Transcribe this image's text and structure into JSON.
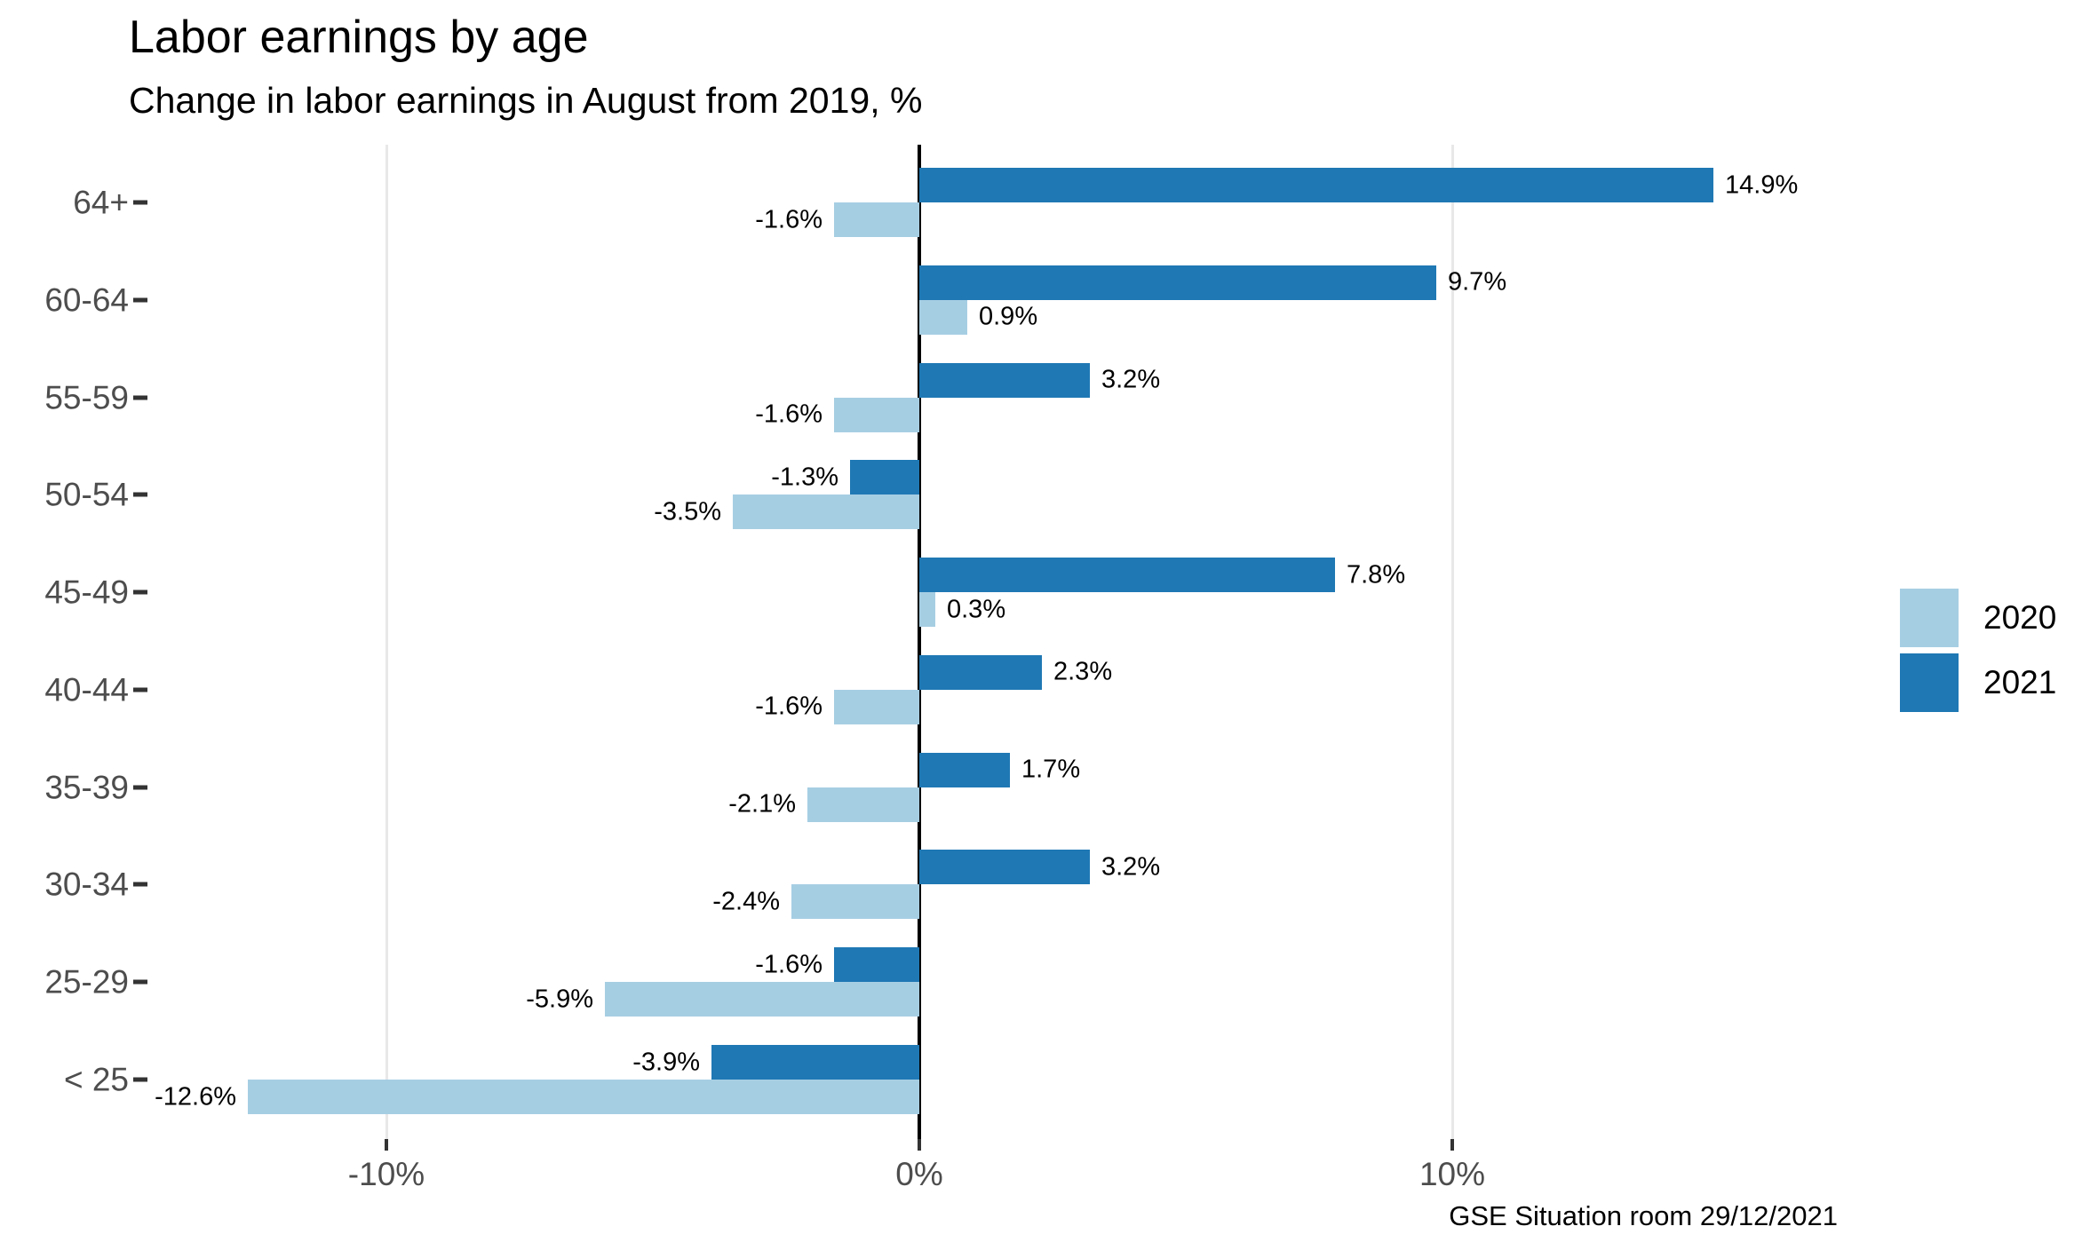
{
  "chart_data": {
    "type": "bar",
    "orientation": "horizontal",
    "title": "Labor earnings by age",
    "subtitle": "Change in labor earnings in August from 2019, %",
    "caption": "GSE Situation room 29/12/2021",
    "categories": [
      "64+",
      "60-64",
      "55-59",
      "50-54",
      "45-49",
      "40-44",
      "35-39",
      "30-34",
      "25-29",
      "< 25"
    ],
    "series": [
      {
        "name": "2021",
        "color": "#1F78B4",
        "values": [
          14.9,
          9.7,
          3.2,
          -1.3,
          7.8,
          2.3,
          1.7,
          3.2,
          -1.6,
          -3.9
        ],
        "labels": [
          "14.9%",
          "9.7%",
          "3.2%",
          "-1.3%",
          "7.8%",
          "2.3%",
          "1.7%",
          "3.2%",
          "-1.6%",
          "-3.9%"
        ]
      },
      {
        "name": "2020",
        "color": "#A6CEE3",
        "values": [
          -1.6,
          0.9,
          -1.6,
          -3.5,
          0.3,
          -1.6,
          -2.1,
          -2.4,
          -5.9,
          -12.6
        ],
        "labels": [
          "-1.6%",
          "0.9%",
          "-1.6%",
          "-3.5%",
          "0.3%",
          "-1.6%",
          "-2.1%",
          "-2.4%",
          "-5.9%",
          "-12.6%"
        ]
      }
    ],
    "x_axis": {
      "ticks": [
        -10,
        0,
        10
      ],
      "tick_labels": [
        "-10%",
        "0%",
        "10%"
      ],
      "gridlines": [
        -10,
        10
      ],
      "range": [
        -14.5,
        17.7
      ],
      "unit": "%"
    },
    "legend": {
      "position": "right",
      "entries": [
        {
          "label": "2020",
          "color": "#A6CEE3"
        },
        {
          "label": "2021",
          "color": "#1F78B4"
        }
      ]
    },
    "colors": {
      "zero_line": "#000000",
      "gridline": "#E8E8E8",
      "axis_text": "#4D4D4D",
      "tick_mark": "#333333",
      "value_label_text": "#000000"
    },
    "layout_hints": {
      "grid": "major-x-only",
      "bar_value_labels": "outside-bar-ends"
    }
  }
}
